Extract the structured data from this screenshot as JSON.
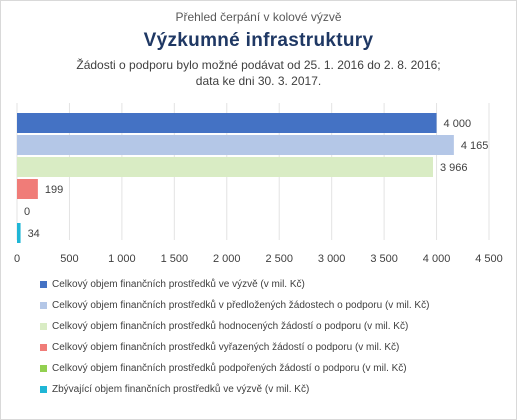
{
  "header": {
    "supertitle": "Přehled čerpání v kolové výzvě",
    "title": "Výzkumné infrastruktury",
    "subtitle_line1": "Žádosti o podporu bylo možné podávat od 25. 1. 2016 do 2. 8. 2016;",
    "subtitle_line2": "data ke dni 30. 3. 2017."
  },
  "chart_data": {
    "type": "bar",
    "orientation": "horizontal",
    "xlim": [
      0,
      4500
    ],
    "ticks": [
      "0",
      "500",
      "1 000",
      "1 500",
      "2 000",
      "2 500",
      "3 000",
      "3 500",
      "4 000",
      "4 500"
    ],
    "tick_values": [
      0,
      500,
      1000,
      1500,
      2000,
      2500,
      3000,
      3500,
      4000,
      4500
    ],
    "grid": true,
    "legend_position": "bottom",
    "series": [
      {
        "name": "Celkový objem finančních prostředků ve výzvě (v mil. Kč)",
        "value": 4000,
        "label": "4 000",
        "color": "#4472c4"
      },
      {
        "name": "Celkový objem finančních prostředků v předložených žádostech o podporu (v mil. Kč)",
        "value": 4165,
        "label": "4 165",
        "color": "#b4c7e7"
      },
      {
        "name": "Celkový objem finančních prostředků hodnocených žádostí o podporu (v mil. Kč)",
        "value": 3966,
        "label": "3 966",
        "color": "#d9ecc4"
      },
      {
        "name": "Celkový objem finančních prostředků vyřazených žádostí o podporu (v mil. Kč)",
        "value": 199,
        "label": "199",
        "color": "#f07c78"
      },
      {
        "name": "Celkový objem finančních prostředků podpořených žádostí o podporu (v mil. Kč)",
        "value": 0,
        "label": "0",
        "color": "#92d050"
      },
      {
        "name": "Zbývající objem finančních prostředků ve výzvě (v mil. Kč)",
        "value": 34,
        "label": "34",
        "color": "#1fb6d6"
      }
    ]
  }
}
